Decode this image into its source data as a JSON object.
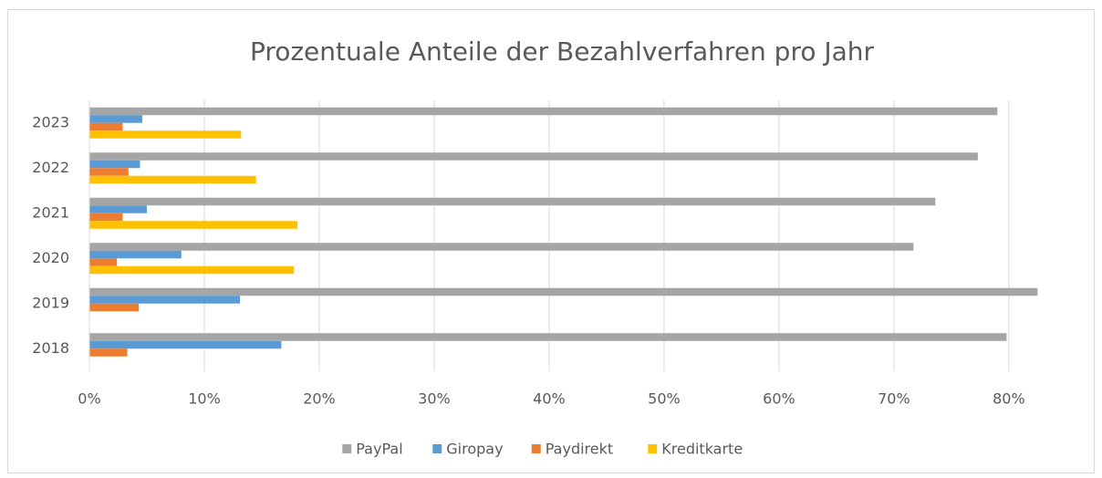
{
  "chart_data": {
    "type": "hbar",
    "title": "Prozentuale Anteile der Bezahlverfahren pro Jahr",
    "categories": [
      "2023",
      "2022",
      "2021",
      "2020",
      "2019",
      "2018"
    ],
    "series": [
      {
        "name": "PayPal",
        "color": "#a5a5a5",
        "values": [
          79.0,
          77.3,
          73.6,
          71.7,
          82.5,
          79.8
        ]
      },
      {
        "name": "Giropay",
        "color": "#5b9bd5",
        "values": [
          4.6,
          4.4,
          5.0,
          8.0,
          13.1,
          16.7
        ]
      },
      {
        "name": "Paydirekt",
        "color": "#ed7d31",
        "values": [
          2.9,
          3.4,
          2.9,
          2.4,
          4.3,
          3.3
        ]
      },
      {
        "name": "Kreditkarte",
        "color": "#ffc000",
        "values": [
          13.2,
          14.5,
          18.1,
          17.8,
          null,
          null
        ]
      }
    ],
    "xlim": [
      0,
      83.5
    ],
    "xticks": [
      {
        "value": 0,
        "label": "0%"
      },
      {
        "value": 10,
        "label": "10%"
      },
      {
        "value": 20,
        "label": "20%"
      },
      {
        "value": 30,
        "label": "30%"
      },
      {
        "value": 40,
        "label": "40%"
      },
      {
        "value": 50,
        "label": "50%"
      },
      {
        "value": 60,
        "label": "60%"
      },
      {
        "value": 70,
        "label": "70%"
      },
      {
        "value": 80,
        "label": "80%"
      }
    ],
    "grid": true,
    "legend": "bottom"
  }
}
